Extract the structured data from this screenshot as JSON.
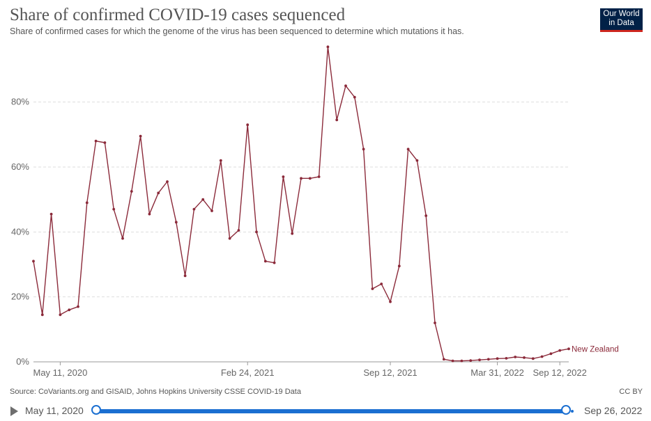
{
  "header": {
    "title": "Share of confirmed COVID-19 cases sequenced",
    "subtitle": "Share of confirmed cases for which the genome of the virus has been sequenced to determine which mutations it has."
  },
  "logo": {
    "line1": "Our World",
    "line2": "in Data"
  },
  "footer": {
    "source": "Source: CoVariants.org and GISAID, Johns Hopkins University CSSE COVID-19 Data",
    "license": "CC BY"
  },
  "timeline": {
    "start_label": "May 11, 2020",
    "end_label": "Sep 26, 2022"
  },
  "colors": {
    "series": "#8b2a3a",
    "grid": "#dddddd",
    "axis": "#999999",
    "slider": "#1b6fd1"
  },
  "chart_data": {
    "type": "line",
    "title": "Share of confirmed COVID-19 cases sequenced",
    "ylim": [
      0,
      96
    ],
    "y_ticks": [
      0,
      20,
      40,
      60,
      80
    ],
    "y_tick_labels": [
      "0%",
      "20%",
      "40%",
      "60%",
      "80%"
    ],
    "x_tick_labels": [
      "May 11, 2020",
      "Feb 24, 2021",
      "Sep 12, 2021",
      "Mar 31, 2022",
      "Sep 12, 2022"
    ],
    "x_tick_index": [
      3,
      24,
      40,
      52,
      59
    ],
    "grid": "horizontal dashed",
    "series": [
      {
        "name": "New Zealand",
        "values": [
          31,
          14.5,
          45.5,
          14.5,
          16,
          17,
          49,
          68,
          67.5,
          47,
          38,
          52.5,
          69.5,
          45.5,
          52,
          55.5,
          43,
          26.5,
          47,
          50,
          46.5,
          62,
          38,
          40.5,
          73,
          40,
          31,
          30.5,
          57,
          39.5,
          56.5,
          56.5,
          57,
          97,
          74.5,
          85,
          81.5,
          65.5,
          22.5,
          24,
          18.5,
          29.5,
          65.5,
          62,
          45,
          12,
          0.8,
          0.3,
          0.3,
          0.4,
          0.6,
          0.8,
          1,
          1.1,
          1.5,
          1.3,
          1.0,
          1.6,
          2.5,
          3.5,
          4
        ]
      }
    ]
  }
}
